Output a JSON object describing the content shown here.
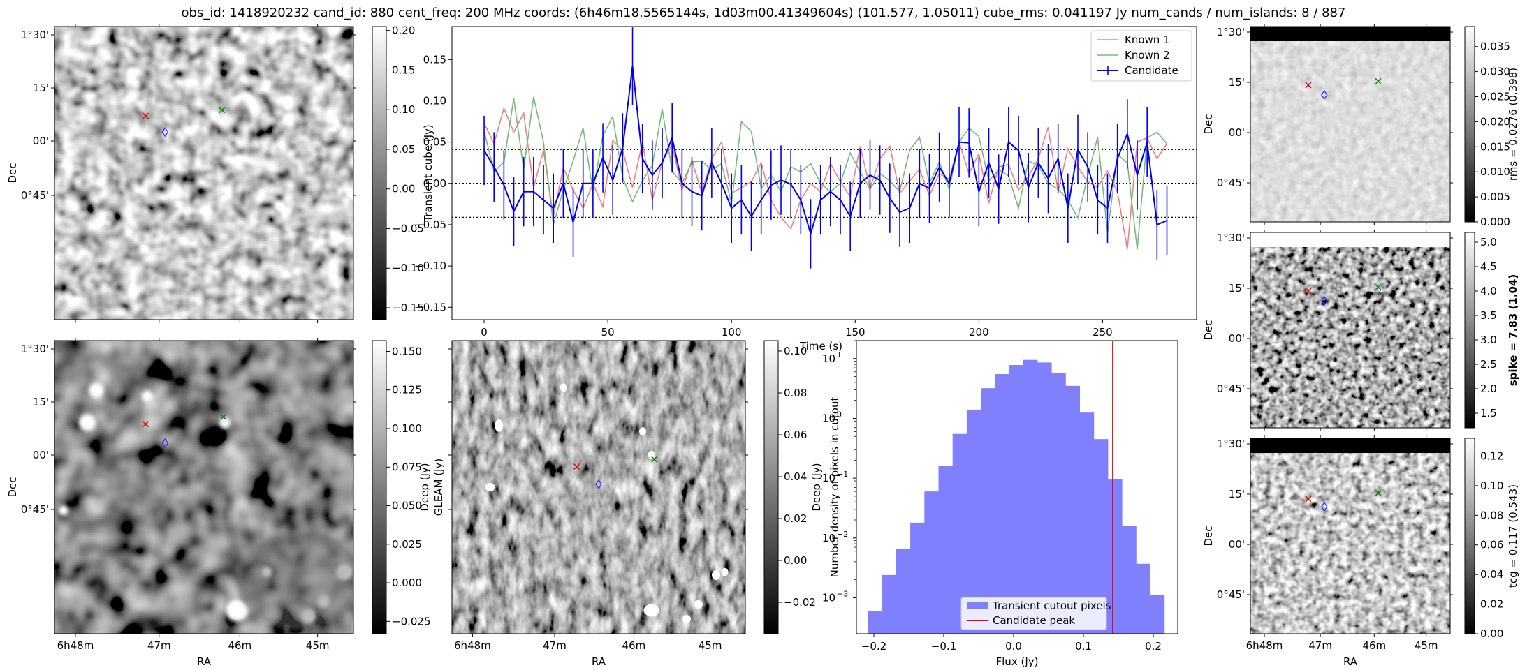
{
  "title": "obs_id: 1418920232 cand_id: 880 cent_freq: 200 MHz coords: (6h46m18.5565144s, 1d03m00.41349604s) (101.577, 1.05011) cube_rms: 0.041197 Jy num_cands / num_islands: 8 / 887",
  "images": {
    "ra_ticks": [
      "6h48m",
      "47m",
      "46m",
      "45m"
    ],
    "dec_ticks": [
      "1°30'",
      "15'",
      "00'",
      "0°45'"
    ],
    "ra_label": "RA",
    "dec_label": "Dec",
    "transient": {
      "cbar_ticks": [
        "0.20",
        "0.15",
        "0.10",
        "0.05",
        "0.00",
        "−0.05",
        "−0.10",
        "−0.15"
      ],
      "cbar_range": [
        -0.165,
        0.205
      ],
      "cbar_label": ""
    },
    "deep": {
      "cbar_ticks": [
        "0.150",
        "0.125",
        "0.100",
        "0.075",
        "0.050",
        "0.025",
        "0.000",
        "−0.025"
      ],
      "cbar_range": [
        -0.033,
        0.157
      ],
      "cbar_label": "Deep (Jy)"
    },
    "gleam": {
      "ylabel": "GLEAM (Jy)",
      "cbar_ticks": [
        "0.10",
        "0.08",
        "0.06",
        "0.04",
        "0.02",
        "0.00",
        "−0.02"
      ],
      "cbar_range": [
        -0.035,
        0.105
      ],
      "cbar_label": "Deep (Jy)"
    },
    "rms": {
      "cbar_ticks": [
        "0.035",
        "0.030",
        "0.025",
        "0.020",
        "0.015",
        "0.010",
        "0.005",
        "0.000"
      ],
      "cbar_range": [
        0,
        0.039
      ],
      "cbar_label": "rms = 0.0276 (0.398)"
    },
    "spike": {
      "cbar_ticks": [
        "5.0",
        "4.5",
        "4.0",
        "3.5",
        "3.0",
        "2.5",
        "2.0",
        "1.5"
      ],
      "cbar_range": [
        1.2,
        5.2
      ],
      "cbar_label": "spike = 7.83 (1.04)"
    },
    "tcg": {
      "cbar_ticks": [
        "0.12",
        "0.10",
        "0.08",
        "0.06",
        "0.04",
        "0.02",
        "0.00"
      ],
      "cbar_range": [
        0,
        0.132
      ],
      "cbar_label": "tcg = 0.117 (0.543)"
    }
  },
  "chart_data": [
    {
      "type": "line",
      "ylabel": "Transient cube (Jy)",
      "xlabel": "Time (s)",
      "xlim": [
        -13,
        288
      ],
      "ylim": [
        -0.165,
        0.19
      ],
      "x_ticks": [
        0,
        50,
        100,
        150,
        200,
        250
      ],
      "y_ticks": [
        0.15,
        0.1,
        0.05,
        0.0,
        -0.05,
        -0.1,
        -0.15
      ],
      "hlines": [
        0.041197,
        0.0,
        -0.041197
      ],
      "legend": "top-right",
      "x_start": 0,
      "x_step": 4,
      "series": [
        {
          "name": "Known 1",
          "color": "#f08080",
          "values": [
            0.073,
            0.048,
            0.091,
            0.062,
            0.085,
            -0.005,
            0.04,
            -0.04,
            0.019,
            -0.008,
            -0.03,
            0.0,
            -0.028,
            0.052,
            0.04,
            -0.005,
            0.05,
            -0.02,
            0.026,
            0.047,
            -0.008,
            0.028,
            -0.012,
            0.03,
            0.05,
            -0.012,
            -0.005,
            0.002,
            0.025,
            -0.02,
            -0.041,
            -0.055,
            -0.02,
            0.0,
            -0.01,
            0.024,
            0.002,
            -0.016,
            0.045,
            -0.006,
            0.03,
            0.045,
            -0.012,
            0.003,
            0.017,
            -0.015,
            0.012,
            0.005,
            0.05,
            0.012,
            0.036,
            -0.024,
            0.02,
            0.023,
            -0.008,
            0.008,
            0.03,
            0.068,
            -0.01,
            0.042,
            0.02,
            0.002,
            -0.005,
            0.015,
            -0.01,
            -0.08,
            0.05,
            0.055,
            0.03,
            0.048
          ]
        },
        {
          "name": "Known 2",
          "color": "#77bb77",
          "values": [
            0.064,
            0.014,
            0.026,
            0.103,
            0.017,
            0.105,
            0.05,
            -0.05,
            -0.008,
            0.027,
            0.067,
            -0.01,
            0.058,
            0.081,
            0.007,
            -0.022,
            0.003,
            0.022,
            0.09,
            0.015,
            0.0,
            0.026,
            0.027,
            0.016,
            0.024,
            -0.024,
            0.075,
            0.063,
            -0.006,
            0.01,
            -0.01,
            0.02,
            0.014,
            0.024,
            0.0,
            -0.01,
            0.0,
            0.037,
            0.014,
            -0.007,
            0.012,
            0.003,
            -0.01,
            0.04,
            0.056,
            0.0,
            0.026,
            -0.007,
            0.05,
            0.067,
            0.057,
            0.003,
            0.017,
            0.009,
            -0.03,
            0.027,
            0.022,
            0.0,
            -0.007,
            -0.02,
            -0.042,
            0.009,
            0.056,
            -0.06,
            0.035,
            0.025,
            -0.08,
            0.055,
            0.062,
            0.048
          ]
        },
        {
          "name": "Candidate",
          "color": "#0000ee",
          "values": [
            0.04,
            0.02,
            -0.002,
            -0.034,
            -0.01,
            -0.01,
            -0.02,
            -0.03,
            0.0,
            -0.047,
            0.0,
            0.0,
            0.031,
            0.004,
            0.043,
            0.142,
            0.03,
            0.01,
            0.025,
            0.055,
            0.0,
            -0.01,
            -0.015,
            0.025,
            0.0,
            -0.03,
            -0.02,
            -0.04,
            -0.02,
            -0.002,
            0.004,
            -0.001,
            -0.02,
            -0.061,
            -0.02,
            -0.01,
            -0.02,
            -0.04,
            0.0,
            0.01,
            0.004,
            -0.018,
            -0.035,
            -0.03,
            0.0,
            -0.006,
            0.02,
            0.0,
            0.05,
            0.049,
            -0.01,
            0.025,
            -0.007,
            0.05,
            0.04,
            -0.005,
            0.025,
            0.006,
            0.03,
            -0.03,
            0.041,
            0.02,
            -0.02,
            -0.03,
            0.03,
            0.06,
            0.01,
            0.05,
            -0.05,
            -0.045
          ]
        }
      ],
      "candidate_errors": [
        0.042,
        0.042,
        0.042,
        0.042,
        0.042,
        0.042,
        0.042,
        0.042,
        0.042,
        0.042,
        0.042,
        0.042,
        0.042,
        0.042,
        0.042,
        0.047,
        0.042,
        0.042,
        0.042,
        0.042,
        0.042,
        0.042,
        0.042,
        0.042,
        0.042,
        0.042,
        0.042,
        0.042,
        0.042,
        0.042,
        0.042,
        0.042,
        0.042,
        0.042,
        0.042,
        0.042,
        0.042,
        0.042,
        0.042,
        0.042,
        0.042,
        0.042,
        0.042,
        0.042,
        0.042,
        0.042,
        0.042,
        0.042,
        0.042,
        0.042,
        0.042,
        0.042,
        0.042,
        0.042,
        0.042,
        0.042,
        0.042,
        0.042,
        0.042,
        0.042,
        0.042,
        0.042,
        0.042,
        0.042,
        0.042,
        0.042,
        0.042,
        0.042,
        0.042,
        0.042
      ]
    },
    {
      "type": "bar",
      "subtype": "histogram",
      "xlabel": "Flux (Jy)",
      "ylabel": "Number density of pixels in cutout",
      "yscale": "log",
      "ylim": [
        0.00025,
        20
      ],
      "xlim": [
        -0.225,
        0.235
      ],
      "x_ticks": [
        "−0.2",
        "−0.1",
        "0.0",
        "0.1",
        "0.2"
      ],
      "x_tick_values": [
        -0.2,
        -0.1,
        0.0,
        0.1,
        0.2
      ],
      "bin_edges": [
        -0.2085,
        -0.1883,
        -0.1681,
        -0.1479,
        -0.1277,
        -0.1075,
        -0.0873,
        -0.0671,
        -0.0469,
        -0.0267,
        -0.0065,
        0.0137,
        0.0339,
        0.0541,
        0.0743,
        0.0945,
        0.1147,
        0.1349,
        0.1551,
        0.1753,
        0.1955,
        0.2157
      ],
      "values": [
        0.0006,
        0.0024,
        0.0065,
        0.018,
        0.06,
        0.16,
        0.55,
        1.4,
        3.2,
        5.5,
        7.8,
        9.5,
        8.6,
        5.8,
        3.5,
        1.25,
        0.45,
        0.095,
        0.016,
        0.0037,
        0.0011
      ],
      "candidate_peak": 0.142,
      "legend": "bottom-center",
      "legend_entries": [
        "Transient cutout pixels",
        "Candidate peak"
      ],
      "colors": {
        "hist": "#8080ff",
        "peak": "#ee0000"
      }
    }
  ]
}
